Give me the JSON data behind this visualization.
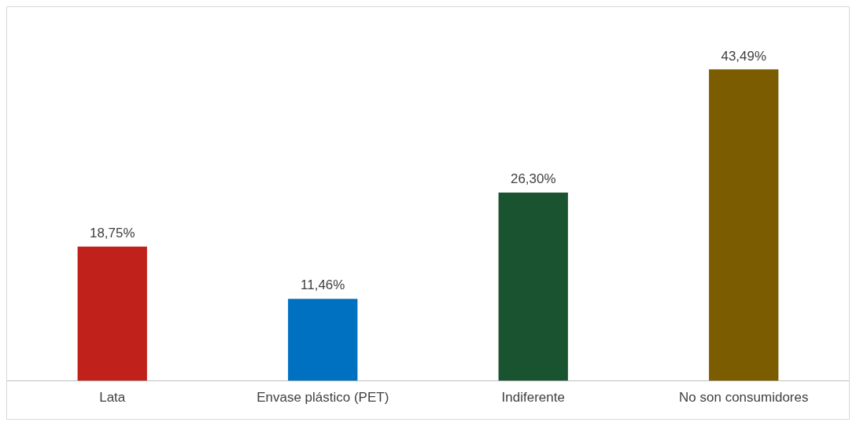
{
  "chart_data": {
    "type": "bar",
    "categories": [
      "Lata",
      "Envase plástico (PET)",
      "Indiferente",
      "No son consumidores"
    ],
    "values": [
      18.75,
      11.46,
      26.3,
      43.49
    ],
    "colors": [
      "#c0211a",
      "#0070c0",
      "#1a5330",
      "#7b5c00"
    ],
    "value_labels": [
      "18,75%",
      "11,46%",
      "26,30%",
      "43,49%"
    ],
    "grid": false,
    "legend": false,
    "tick_labels": "x"
  }
}
